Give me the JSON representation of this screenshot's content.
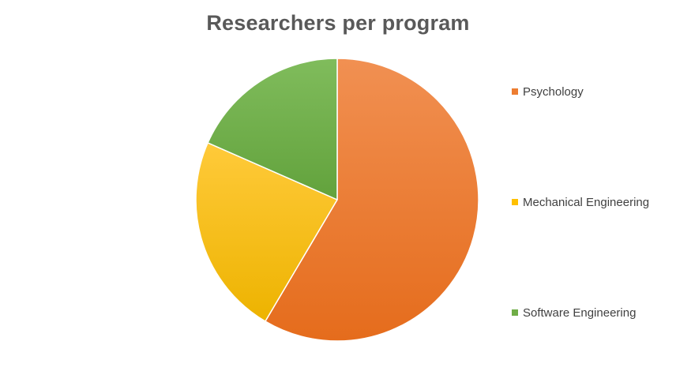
{
  "chart_data": {
    "type": "pie",
    "title": "Researchers per program",
    "categories": [
      "Psychology",
      "Mechanical Engineering",
      "Software Engineering"
    ],
    "values": [
      58.5,
      23.1,
      18.4
    ],
    "colors": [
      "#ED7D31",
      "#FFC000",
      "#70AD47"
    ],
    "start_angle_deg": 0,
    "direction": "clockwise",
    "legend_position": "right"
  }
}
